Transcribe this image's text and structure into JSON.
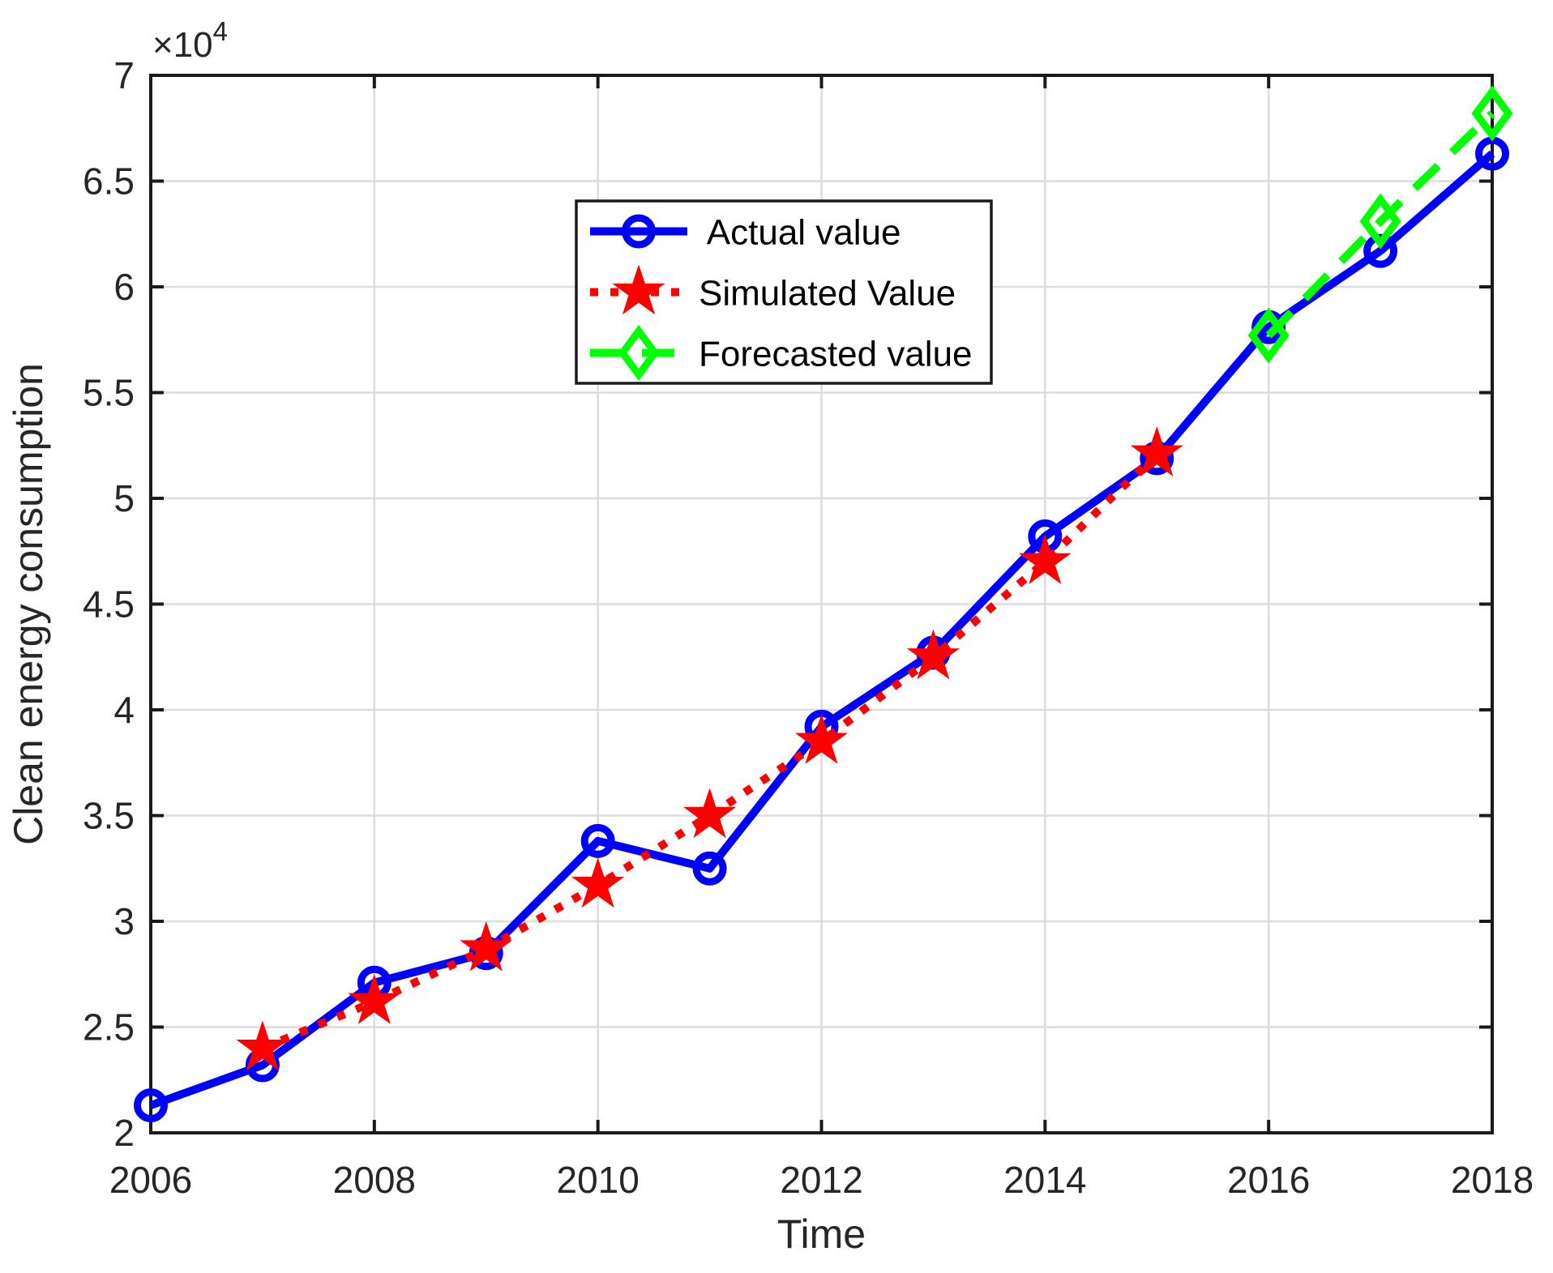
{
  "figure": {
    "background": "#ffffff",
    "axis_color": "#1a1a1a",
    "grid_color": "#dcdcdc",
    "tick_label_color": "#262626",
    "axis_label_color": "#262626",
    "xlabel": "Time",
    "ylabel": "Clean energy consumption",
    "y_multiplier_base": "×10",
    "y_multiplier_exponent": "4",
    "x_tick_labels": [
      "2006",
      "2008",
      "2010",
      "2012",
      "2014",
      "2016",
      "2018"
    ],
    "y_tick_labels": [
      "2",
      "2.5",
      "3",
      "3.5",
      "4",
      "4.5",
      "5",
      "5.5",
      "6",
      "6.5",
      "7"
    ]
  },
  "legend": {
    "items": [
      {
        "label": " Actual value",
        "color": "#0000ff",
        "line": "solid",
        "marker": "circle"
      },
      {
        "label": "Simulated Value",
        "color": "#ff0000",
        "line": "dotted",
        "marker": "star"
      },
      {
        "label": "Forecasted value",
        "color": "#00ff00",
        "line": "dashed",
        "marker": "diamond"
      }
    ]
  },
  "chart_data": {
    "type": "line",
    "title": "",
    "xlabel": "Time",
    "ylabel": "Clean energy consumption",
    "xlim": [
      2006,
      2018
    ],
    "ylim": [
      20000,
      70000
    ],
    "x_tick_step": 2,
    "y_tick_step": 5000,
    "y_axis_multiplier": 10000,
    "grid": true,
    "legend_position": "upper-left-inside",
    "series": [
      {
        "name": "Actual value",
        "color": "#0000ff",
        "line_style": "solid",
        "marker": "circle",
        "x": [
          2006,
          2007,
          2008,
          2009,
          2010,
          2011,
          2012,
          2013,
          2014,
          2015,
          2016,
          2017,
          2018
        ],
        "y": [
          21300,
          23200,
          27100,
          28500,
          33800,
          32500,
          39200,
          42700,
          48200,
          51900,
          58100,
          61700,
          66300
        ]
      },
      {
        "name": "Simulated Value",
        "color": "#ff0000",
        "line_style": "dotted",
        "marker": "star",
        "x": [
          2007,
          2008,
          2009,
          2010,
          2011,
          2012,
          2013,
          2014,
          2015
        ],
        "y": [
          24000,
          26200,
          28700,
          31700,
          35000,
          38500,
          42500,
          47000,
          52100
        ]
      },
      {
        "name": "Forecasted value",
        "color": "#00ff00",
        "line_style": "dashed",
        "marker": "diamond",
        "x": [
          2016,
          2017,
          2018
        ],
        "y": [
          57700,
          63100,
          68200
        ]
      }
    ]
  }
}
